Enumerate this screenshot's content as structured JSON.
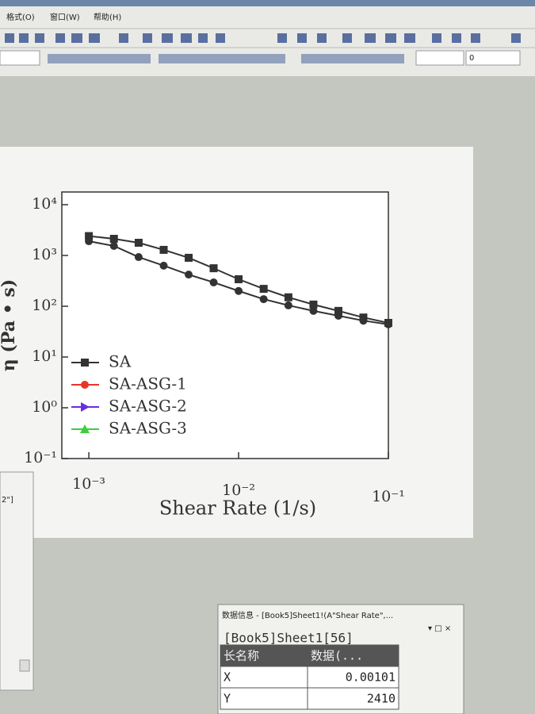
{
  "menu": [
    "格式(O)",
    "窗口(W)",
    "帮助(H)"
  ],
  "font_size_box": "0",
  "side_panel_text": "2\"]",
  "chart_data": {
    "type": "line",
    "x_label": "Shear Rate (1/s)",
    "y_label": "η (Pa • s)",
    "x": [
      0.001,
      0.00147,
      0.00215,
      0.00316,
      0.00464,
      0.00681,
      0.01,
      0.0147,
      0.0215,
      0.0316,
      0.0464,
      0.0681,
      0.1
    ],
    "series": [
      {
        "name": "SA",
        "color": "#333333",
        "marker": "square",
        "values": [
          2410,
          2130,
          1780,
          1290,
          900,
          560,
          340,
          220,
          150,
          108,
          81,
          60,
          47
        ]
      },
      {
        "name": "SA-ASG-1",
        "color": "#e8352a",
        "marker": "circle",
        "values": [
          1910,
          1540,
          930,
          630,
          420,
          295,
          200,
          138,
          104,
          81,
          65,
          52,
          44
        ]
      },
      {
        "name": "SA-ASG-2",
        "color": "#6a2ee0",
        "marker": "triangle-right",
        "values": [
          null,
          null,
          null,
          null,
          null,
          null,
          null,
          null,
          null,
          null,
          null,
          null,
          null
        ]
      },
      {
        "name": "SA-ASG-3",
        "color": "#3ccf3c",
        "marker": "triangle-up",
        "values": [
          null,
          null,
          null,
          null,
          null,
          null,
          null,
          null,
          null,
          null,
          null,
          null,
          null
        ]
      }
    ],
    "plot_color": "#333333",
    "x_log": true,
    "y_log": true,
    "xlim": [
      0.00066,
      0.1
    ],
    "ylim": [
      0.1,
      17800
    ],
    "xticks": [
      {
        "value": 0.001,
        "label": "10⁻³"
      },
      {
        "value": 0.01,
        "label": "10⁻²"
      },
      {
        "value": 0.1,
        "label": "10⁻¹"
      }
    ],
    "yticks": [
      {
        "value": 0.1,
        "label": "10⁻¹"
      },
      {
        "value": 1,
        "label": "10⁰"
      },
      {
        "value": 10,
        "label": "10¹"
      },
      {
        "value": 100,
        "label": "10²"
      },
      {
        "value": 1000,
        "label": "10³"
      },
      {
        "value": 10000,
        "label": "10⁴"
      }
    ],
    "legend": "lower left"
  },
  "data_info": {
    "title": "数据信息 - [Book5]Sheet1!(A\"Shear Rate\",...",
    "subtitle": "[Book5]Sheet1[56]",
    "header": [
      "长名称",
      "数据(..."
    ],
    "rows": [
      [
        "X",
        "0.00101"
      ],
      [
        "Y",
        "2410"
      ]
    ]
  }
}
